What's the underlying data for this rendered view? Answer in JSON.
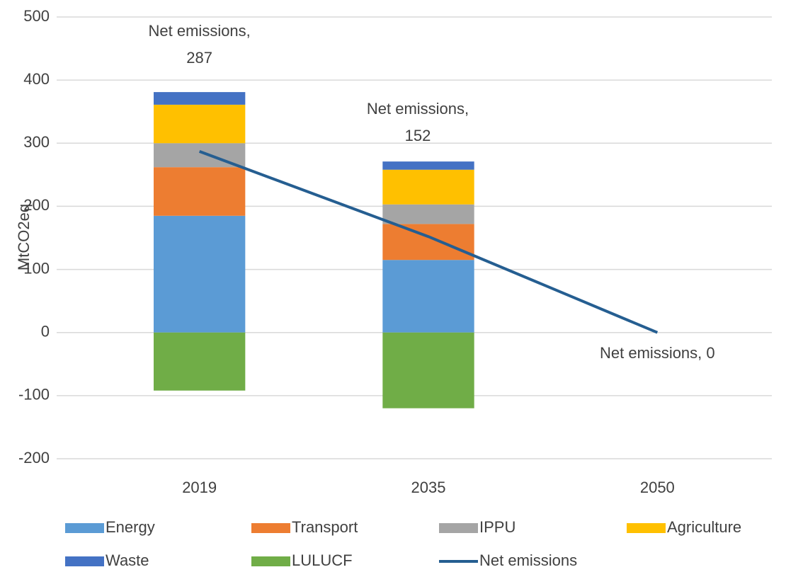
{
  "chart_data": {
    "type": "bar",
    "stacked": true,
    "y_label": "MtCO2eq",
    "categories": [
      "2019",
      "2035",
      "2050"
    ],
    "ylim": [
      -200,
      500
    ],
    "yticks": [
      -200,
      -100,
      0,
      100,
      200,
      300,
      400,
      500
    ],
    "grid": true,
    "series": [
      {
        "name": "Energy",
        "color": "#5b9bd5",
        "values": [
          185,
          115,
          null
        ]
      },
      {
        "name": "Transport",
        "color": "#ed7d31",
        "values": [
          77,
          57,
          null
        ]
      },
      {
        "name": "IPPU",
        "color": "#a5a5a5",
        "values": [
          38,
          31,
          null
        ]
      },
      {
        "name": "Agriculture",
        "color": "#ffc000",
        "values": [
          61,
          55,
          null
        ]
      },
      {
        "name": "Waste",
        "color": "#4472c4",
        "values": [
          20,
          13,
          null
        ]
      },
      {
        "name": "LULUCF",
        "color": "#70ad47",
        "values": [
          -92,
          -120,
          null
        ]
      },
      {
        "name": "Net emissions",
        "type": "line",
        "color": "#255e91",
        "values": [
          287,
          152,
          0
        ],
        "value_labels": [
          "Net emissions, 287",
          "Net emissions, 152",
          "Net emissions, 0"
        ]
      }
    ]
  }
}
